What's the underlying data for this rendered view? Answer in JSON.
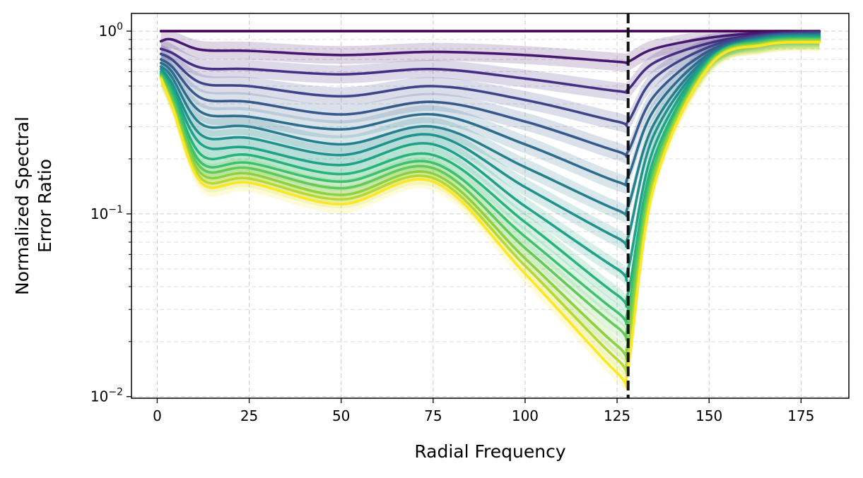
{
  "chart_data": {
    "type": "line",
    "title": "",
    "xlabel": "Radial Frequency",
    "ylabel": [
      "Normalized Spectral",
      "Error Ratio"
    ],
    "xscale": "linear",
    "yscale": "log",
    "xlim": [
      -7,
      188
    ],
    "ylim": [
      0.0098,
      1.25
    ],
    "xticks": [
      0,
      25,
      50,
      75,
      100,
      125,
      150,
      175
    ],
    "xtick_labels": [
      "0",
      "25",
      "50",
      "75",
      "100",
      "125",
      "150",
      "175"
    ],
    "yticks": [
      {
        "value": 1,
        "base": "10",
        "exp": "0"
      },
      {
        "value": 0.1,
        "base": "10",
        "exp": "−1"
      },
      {
        "value": 0.01,
        "base": "10",
        "exp": "−2"
      }
    ],
    "grid": true,
    "grid_style": "dashed",
    "colormap": "viridis",
    "bands": "shaded uncertainty band around each series",
    "vline": {
      "x": 128,
      "style": "dashed",
      "color": "#111111"
    },
    "x": [
      1,
      4,
      12,
      25,
      50,
      75,
      100,
      125,
      128,
      135,
      150,
      165,
      180
    ],
    "series": [
      {
        "color": "#440154",
        "values": [
          1.0,
          1.0,
          1.0,
          1.0,
          1.0,
          1.0,
          1.0,
          1.0,
          1.0,
          1.0,
          1.0,
          1.0,
          1.0
        ]
      },
      {
        "color": "#46186f",
        "values": [
          0.88,
          0.9,
          0.79,
          0.78,
          0.74,
          0.77,
          0.74,
          0.68,
          0.68,
          0.8,
          0.92,
          0.98,
          1.0
        ]
      },
      {
        "color": "#462f82",
        "values": [
          0.8,
          0.76,
          0.63,
          0.62,
          0.58,
          0.62,
          0.55,
          0.47,
          0.48,
          0.67,
          0.86,
          0.96,
          0.99
        ]
      },
      {
        "color": "#3f448a",
        "values": [
          0.75,
          0.7,
          0.52,
          0.5,
          0.44,
          0.5,
          0.42,
          0.32,
          0.32,
          0.55,
          0.82,
          0.95,
          0.98
        ]
      },
      {
        "color": "#37598c",
        "values": [
          0.7,
          0.64,
          0.43,
          0.41,
          0.35,
          0.41,
          0.32,
          0.22,
          0.22,
          0.44,
          0.78,
          0.94,
          0.97
        ]
      },
      {
        "color": "#2e6c8e",
        "values": [
          0.67,
          0.6,
          0.36,
          0.34,
          0.29,
          0.35,
          0.24,
          0.15,
          0.16,
          0.37,
          0.75,
          0.93,
          0.96
        ]
      },
      {
        "color": "#277e8e",
        "values": [
          0.64,
          0.56,
          0.31,
          0.3,
          0.24,
          0.3,
          0.18,
          0.105,
          0.11,
          0.31,
          0.73,
          0.92,
          0.95
        ]
      },
      {
        "color": "#21918d",
        "values": [
          0.62,
          0.52,
          0.27,
          0.26,
          0.21,
          0.27,
          0.14,
          0.074,
          0.075,
          0.27,
          0.71,
          0.91,
          0.94
        ]
      },
      {
        "color": "#1fa287",
        "values": [
          0.6,
          0.49,
          0.24,
          0.23,
          0.185,
          0.24,
          0.11,
          0.05,
          0.05,
          0.23,
          0.7,
          0.9,
          0.93
        ]
      },
      {
        "color": "#28b37c",
        "values": [
          0.59,
          0.47,
          0.21,
          0.21,
          0.165,
          0.21,
          0.09,
          0.036,
          0.037,
          0.2,
          0.69,
          0.89,
          0.92
        ]
      },
      {
        "color": "#3fc16b",
        "values": [
          0.58,
          0.45,
          0.19,
          0.19,
          0.15,
          0.19,
          0.075,
          0.029,
          0.03,
          0.18,
          0.68,
          0.88,
          0.91
        ]
      },
      {
        "color": "#63ca57",
        "values": [
          0.57,
          0.43,
          0.178,
          0.178,
          0.138,
          0.178,
          0.065,
          0.024,
          0.025,
          0.17,
          0.67,
          0.87,
          0.9
        ]
      },
      {
        "color": "#8ad242",
        "values": [
          0.56,
          0.41,
          0.166,
          0.166,
          0.127,
          0.166,
          0.057,
          0.019,
          0.02,
          0.16,
          0.66,
          0.86,
          0.89
        ]
      },
      {
        "color": "#b5d836",
        "values": [
          0.56,
          0.4,
          0.156,
          0.156,
          0.12,
          0.157,
          0.052,
          0.016,
          0.017,
          0.15,
          0.65,
          0.85,
          0.88
        ]
      },
      {
        "color": "#fde725",
        "values": [
          0.55,
          0.39,
          0.148,
          0.148,
          0.113,
          0.15,
          0.047,
          0.0135,
          0.0145,
          0.14,
          0.64,
          0.84,
          0.87
        ]
      }
    ]
  }
}
